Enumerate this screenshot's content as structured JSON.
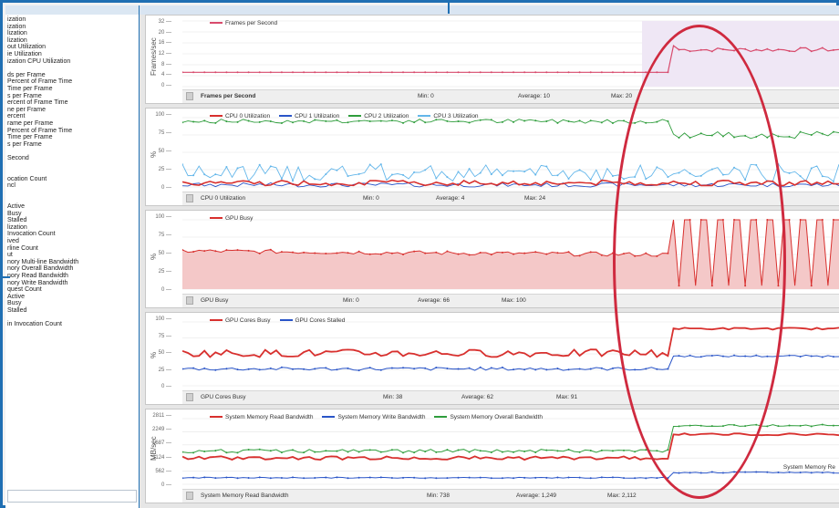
{
  "left_panel": {
    "items": [
      "ization",
      "ization",
      "lization",
      "lization",
      "out Utilization",
      "ie Utilization",
      "ization CPU Utilization",
      "",
      "ds per Frame",
      "Percent of Frame Time",
      "Time per Frame",
      "s per Frame",
      "ercent of Frame Time",
      "ne per Frame",
      "ercent",
      "rame per Frame",
      "Percent of Frame Time",
      "Time per Frame",
      "s per Frame",
      "",
      "Second",
      "",
      "",
      "ocation Count",
      "ncl",
      "",
      "",
      "Active",
      "Busy",
      "Stalled",
      "lization",
      "Invocation Count",
      "ived",
      "rline Count",
      "ut",
      "nory Multi-line Bandwidth",
      "nory Overall Bandwidth",
      "nory Read Bandwidth",
      "nory Write Bandwidth",
      "quest Count",
      "Active",
      "Busy",
      "Stalled",
      "",
      "in Invocation Count"
    ]
  },
  "colors": {
    "red": "#d8302e",
    "blue": "#2a55c8",
    "green": "#2f9d3c",
    "lightblue": "#63b6ea",
    "pink": "#d84a6c",
    "annotation": "#cf2a3f",
    "frame": "#1f6fb3"
  },
  "panels": [
    {
      "id": "fps",
      "ylabel": "Frames/sec",
      "ticks": [
        "32",
        "20",
        "16",
        "12",
        "8",
        "4",
        "0"
      ],
      "legend": [
        {
          "label": "Frames per Second",
          "color": "pink"
        }
      ],
      "footer": {
        "name": "Frames per Second",
        "min": "Min: 0",
        "avg": "Average: 10",
        "max": "Max: 20"
      },
      "chart_data": {
        "type": "line",
        "ylim": [
          0,
          32
        ],
        "series": [
          {
            "name": "Frames per Second",
            "color": "pink",
            "values_desc": "approx 7 until ~x=0.75, then jumps to ~18-20"
          }
        ]
      }
    },
    {
      "id": "cpu",
      "ylabel": "%",
      "ticks": [
        "100",
        "75",
        "50",
        "25",
        "0"
      ],
      "legend": [
        {
          "label": "CPU 0 Utilization",
          "color": "red"
        },
        {
          "label": "CPU 1 Utilization",
          "color": "blue"
        },
        {
          "label": "CPU 2 Utilization",
          "color": "green"
        },
        {
          "label": "CPU 3 Utilization",
          "color": "lightblue"
        }
      ],
      "footer": {
        "name": "CPU 0 Utilization",
        "min": "Min: 0",
        "avg": "Average: 4",
        "max": "Max: 24"
      }
    },
    {
      "id": "gpu",
      "ylabel": "%",
      "ticks": [
        "100",
        "75",
        "50",
        "25",
        "0"
      ],
      "legend": [
        {
          "label": "GPU Busy",
          "color": "red"
        }
      ],
      "footer": {
        "name": "GPU Busy",
        "min": "Min: 0",
        "avg": "Average: 66",
        "max": "Max: 100"
      }
    },
    {
      "id": "cores",
      "ylabel": "%",
      "ticks": [
        "100",
        "75",
        "50",
        "25",
        "0"
      ],
      "legend": [
        {
          "label": "GPU Cores Busy",
          "color": "red"
        },
        {
          "label": "GPU Cores Stalled",
          "color": "blue"
        }
      ],
      "footer": {
        "name": "GPU Cores Busy",
        "min": "Min: 38",
        "avg": "Average: 62",
        "max": "Max: 91"
      }
    },
    {
      "id": "mem",
      "ylabel": "MB/sec",
      "ticks": [
        "2811",
        "2249",
        "1687",
        "1124",
        "562",
        "0"
      ],
      "legend": [
        {
          "label": "System Memory Read Bandwidth",
          "color": "red"
        },
        {
          "label": "System Memory Write Bandwidth",
          "color": "blue"
        },
        {
          "label": "System Memory Overall Bandwidth",
          "color": "green"
        }
      ],
      "footer": {
        "name": "System Memory Read Bandwidth",
        "min": "Min: 738",
        "avg": "Average: 1,249",
        "max": "Max: 2,112"
      },
      "overlay_label": "System Memory Re"
    }
  ]
}
